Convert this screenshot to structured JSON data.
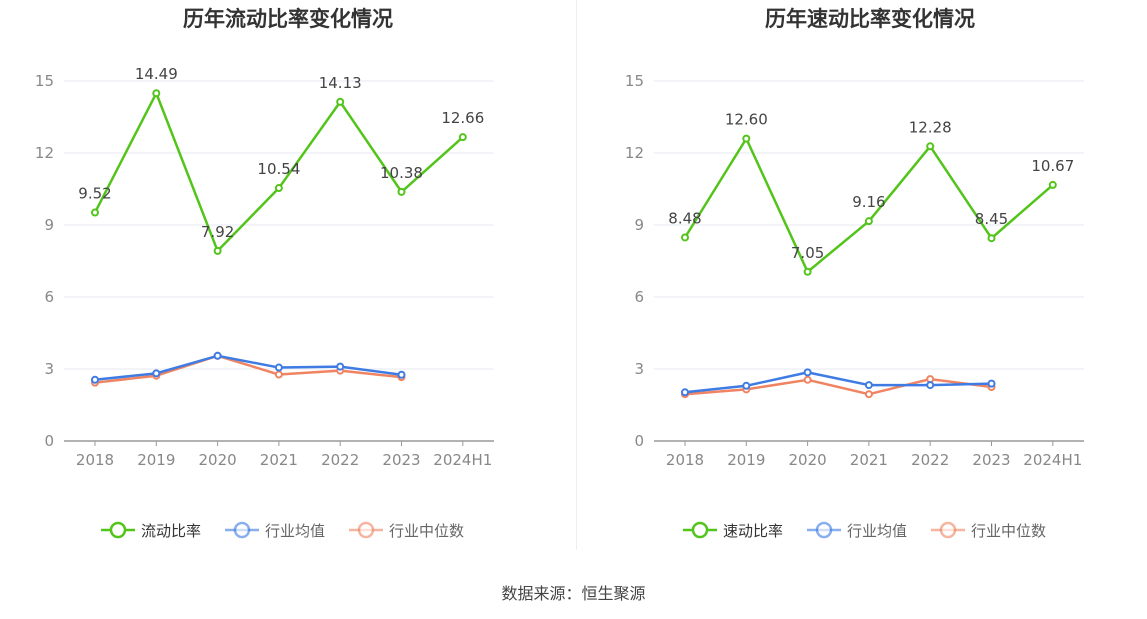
{
  "source_text": "数据来源：恒生聚源",
  "chart_data": [
    {
      "type": "line",
      "title": "历年流动比率变化情况",
      "categories": [
        "2018",
        "2019",
        "2020",
        "2021",
        "2022",
        "2023",
        "2024H1"
      ],
      "ylim": [
        0,
        15
      ],
      "yticks": [
        0,
        3,
        6,
        9,
        12,
        15
      ],
      "grid": true,
      "legend_position": "bottom-center",
      "series": [
        {
          "name": "流动比率",
          "color": "#52c41a",
          "labels": true,
          "values": [
            9.52,
            14.49,
            7.92,
            10.54,
            14.13,
            10.38,
            12.66
          ]
        },
        {
          "name": "行业均值",
          "color": "#3e7be3",
          "labels": false,
          "values": [
            2.55,
            2.82,
            3.55,
            3.06,
            3.1,
            2.76,
            null
          ]
        },
        {
          "name": "行业中位数",
          "color": "#f08462",
          "labels": false,
          "values": [
            2.43,
            2.72,
            3.55,
            2.77,
            2.93,
            2.66,
            null
          ]
        }
      ]
    },
    {
      "type": "line",
      "title": "历年速动比率变化情况",
      "categories": [
        "2018",
        "2019",
        "2020",
        "2021",
        "2022",
        "2023",
        "2024H1"
      ],
      "ylim": [
        0,
        15
      ],
      "yticks": [
        0,
        3,
        6,
        9,
        12,
        15
      ],
      "grid": true,
      "legend_position": "bottom-center",
      "series": [
        {
          "name": "速动比率",
          "color": "#52c41a",
          "labels": true,
          "values": [
            8.48,
            12.6,
            7.05,
            9.16,
            12.28,
            8.45,
            10.67
          ]
        },
        {
          "name": "行业均值",
          "color": "#3e7be3",
          "labels": false,
          "values": [
            2.03,
            2.3,
            2.86,
            2.33,
            2.33,
            2.39,
            null
          ]
        },
        {
          "name": "行业中位数",
          "color": "#f08462",
          "labels": false,
          "values": [
            1.95,
            2.15,
            2.55,
            1.95,
            2.58,
            2.25,
            null
          ]
        }
      ]
    }
  ]
}
